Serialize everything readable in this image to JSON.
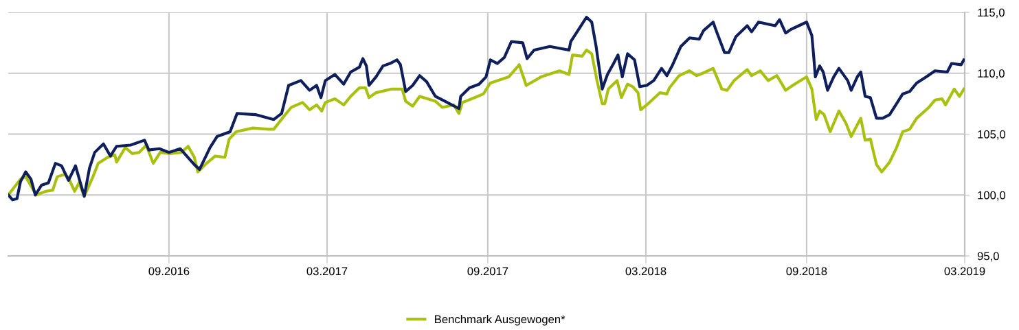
{
  "chart_data": {
    "type": "line",
    "xlim": [
      "2016-03-01",
      "2019-03-01"
    ],
    "xticks": [
      {
        "value": "2016-09-01",
        "label": "09.2016"
      },
      {
        "value": "2017-03-01",
        "label": "03.2017"
      },
      {
        "value": "2017-09-01",
        "label": "09.2017"
      },
      {
        "value": "2018-03-01",
        "label": "03.2018"
      },
      {
        "value": "2018-09-01",
        "label": "09.2018"
      },
      {
        "value": "2019-03-01",
        "label": "03.2019"
      }
    ],
    "ylim": [
      95,
      115
    ],
    "yticks": [
      {
        "value": 95,
        "label": "95,0"
      },
      {
        "value": 100,
        "label": "100,0"
      },
      {
        "value": 105,
        "label": "105,0"
      },
      {
        "value": 110,
        "label": "110,0"
      },
      {
        "value": 115,
        "label": "115,0"
      }
    ],
    "grid": true,
    "legend": "bottom",
    "marker": "none",
    "line_style": "solid",
    "series": [
      {
        "color": "#0f1f5c",
        "x": [
          "2016-03-01",
          "2016-03-06",
          "2016-03-11",
          "2016-03-15",
          "2016-03-21",
          "2016-03-27",
          "2016-04-01",
          "2016-04-08",
          "2016-04-16",
          "2016-04-24",
          "2016-05-01",
          "2016-05-09",
          "2016-05-17",
          "2016-05-27",
          "2016-06-02",
          "2016-06-08",
          "2016-06-18",
          "2016-06-26",
          "2016-07-03",
          "2016-07-19",
          "2016-08-04",
          "2016-08-09",
          "2016-08-21",
          "2016-09-01",
          "2016-09-14",
          "2016-09-30",
          "2016-10-06",
          "2016-10-18",
          "2016-10-26",
          "2016-11-10",
          "2016-11-18",
          "2016-12-09",
          "2016-12-30",
          "2017-01-08",
          "2017-01-16",
          "2017-01-30",
          "2017-02-09",
          "2017-02-17",
          "2017-02-22",
          "2017-02-27",
          "2017-03-10",
          "2017-03-20",
          "2017-03-28",
          "2017-04-07",
          "2017-04-11",
          "2017-04-15",
          "2017-04-18",
          "2017-04-26",
          "2017-05-04",
          "2017-05-12",
          "2017-05-20",
          "2017-05-24",
          "2017-05-30",
          "2017-06-07",
          "2017-06-15",
          "2017-06-23",
          "2017-07-03",
          "2017-07-14",
          "2017-07-30",
          "2017-08-01",
          "2017-08-11",
          "2017-08-22",
          "2017-08-30",
          "2017-09-04",
          "2017-09-12",
          "2017-09-20",
          "2017-09-28",
          "2017-10-11",
          "2017-10-16",
          "2017-10-24",
          "2017-11-11",
          "2017-12-03",
          "2017-12-05",
          "2017-12-23",
          "2017-12-29",
          "2018-01-03",
          "2018-01-10",
          "2018-01-16",
          "2018-01-23",
          "2018-01-28",
          "2018-02-02",
          "2018-02-08",
          "2018-02-16",
          "2018-02-22",
          "2018-03-02",
          "2018-03-10",
          "2018-03-19",
          "2018-03-25",
          "2018-03-31",
          "2018-04-10",
          "2018-04-20",
          "2018-05-01",
          "2018-05-06",
          "2018-05-17",
          "2018-05-21",
          "2018-05-30",
          "2018-06-04",
          "2018-06-12",
          "2018-06-25",
          "2018-06-30",
          "2018-07-08",
          "2018-07-27",
          "2018-08-01",
          "2018-08-08",
          "2018-08-14",
          "2018-08-26",
          "2018-09-01",
          "2018-09-07",
          "2018-09-09",
          "2018-09-11",
          "2018-09-16",
          "2018-09-20",
          "2018-09-25",
          "2018-10-02",
          "2018-10-08",
          "2018-10-18",
          "2018-10-22",
          "2018-10-29",
          "2018-11-02",
          "2018-11-07",
          "2018-11-13",
          "2018-11-20",
          "2018-11-27",
          "2018-12-05",
          "2018-12-13",
          "2018-12-20",
          "2018-12-28",
          "2019-01-05",
          "2019-01-16",
          "2019-01-26",
          "2019-02-09",
          "2019-02-14",
          "2019-02-25",
          "2019-02-28"
        ],
        "values": [
          100.0,
          99.6,
          99.7,
          101.1,
          101.9,
          101.3,
          100.0,
          100.8,
          101.0,
          102.6,
          102.4,
          101.2,
          102.4,
          99.9,
          102.2,
          103.5,
          104.2,
          103.2,
          104.0,
          104.1,
          104.5,
          103.7,
          103.8,
          103.5,
          103.8,
          102.5,
          102.1,
          103.9,
          104.8,
          105.2,
          106.7,
          106.6,
          106.2,
          106.7,
          109.0,
          109.4,
          108.6,
          109.0,
          108.0,
          109.4,
          109.9,
          109.1,
          110.1,
          110.5,
          111.2,
          110.6,
          109.0,
          109.7,
          110.6,
          110.8,
          111.1,
          110.7,
          108.5,
          109.0,
          109.8,
          109.3,
          108.1,
          107.7,
          107.1,
          108.1,
          108.8,
          109.1,
          109.7,
          111.1,
          110.8,
          111.3,
          112.6,
          112.5,
          111.2,
          111.9,
          112.2,
          111.9,
          112.6,
          114.6,
          114.2,
          112.2,
          108.7,
          109.9,
          110.8,
          111.5,
          109.7,
          111.6,
          111.1,
          108.9,
          109.0,
          109.4,
          110.4,
          109.8,
          110.6,
          112.2,
          112.9,
          112.8,
          113.5,
          114.2,
          113.4,
          111.7,
          111.7,
          113.0,
          113.9,
          113.4,
          114.2,
          113.9,
          114.4,
          113.3,
          113.6,
          114.0,
          114.2,
          113.1,
          111.5,
          109.7,
          110.6,
          110.1,
          108.6,
          109.7,
          110.4,
          109.4,
          108.6,
          109.7,
          110.1,
          108.1,
          108.0,
          106.3,
          106.3,
          106.6,
          107.5,
          108.3,
          108.5,
          109.2,
          109.7,
          110.2,
          110.1,
          110.8,
          110.7,
          111.1
        ]
      },
      {
        "name": "Benchmark Ausgewogen*",
        "color": "#a9c00f",
        "x": [
          "2016-03-02",
          "2016-03-15",
          "2016-03-21",
          "2016-04-02",
          "2016-04-13",
          "2016-04-21",
          "2016-04-26",
          "2016-05-05",
          "2016-05-09",
          "2016-05-16",
          "2016-05-21",
          "2016-05-27",
          "2016-06-06",
          "2016-06-12",
          "2016-06-23",
          "2016-07-01",
          "2016-07-03",
          "2016-07-13",
          "2016-07-21",
          "2016-07-29",
          "2016-08-06",
          "2016-08-14",
          "2016-08-22",
          "2016-09-02",
          "2016-09-15",
          "2016-09-23",
          "2016-09-30",
          "2016-10-04",
          "2016-10-14",
          "2016-10-24",
          "2016-11-04",
          "2016-11-09",
          "2016-11-17",
          "2016-12-06",
          "2016-12-24",
          "2016-12-30",
          "2017-01-11",
          "2017-01-19",
          "2017-02-01",
          "2017-02-09",
          "2017-02-17",
          "2017-02-23",
          "2017-02-27",
          "2017-03-10",
          "2017-03-20",
          "2017-03-28",
          "2017-04-07",
          "2017-04-14",
          "2017-04-18",
          "2017-04-26",
          "2017-05-14",
          "2017-05-26",
          "2017-05-30",
          "2017-06-07",
          "2017-06-15",
          "2017-07-03",
          "2017-07-11",
          "2017-07-24",
          "2017-07-30",
          "2017-08-03",
          "2017-08-17",
          "2017-08-27",
          "2017-09-04",
          "2017-09-25",
          "2017-10-07",
          "2017-10-15",
          "2017-11-01",
          "2017-11-22",
          "2017-12-03",
          "2017-12-07",
          "2017-12-18",
          "2017-12-23",
          "2017-12-29",
          "2018-01-04",
          "2018-01-10",
          "2018-01-13",
          "2018-01-17",
          "2018-01-27",
          "2018-02-01",
          "2018-02-08",
          "2018-02-14",
          "2018-02-20",
          "2018-02-23",
          "2018-03-02",
          "2018-03-17",
          "2018-03-25",
          "2018-03-28",
          "2018-04-08",
          "2018-04-20",
          "2018-04-28",
          "2018-05-05",
          "2018-05-17",
          "2018-05-27",
          "2018-06-02",
          "2018-06-10",
          "2018-06-25",
          "2018-06-30",
          "2018-07-10",
          "2018-07-19",
          "2018-07-29",
          "2018-08-08",
          "2018-08-16",
          "2018-09-01",
          "2018-09-07",
          "2018-09-12",
          "2018-09-16",
          "2018-09-21",
          "2018-09-28",
          "2018-10-08",
          "2018-10-16",
          "2018-10-22",
          "2018-10-30",
          "2018-11-02",
          "2018-11-07",
          "2018-11-13",
          "2018-11-20",
          "2018-11-26",
          "2018-12-05",
          "2018-12-13",
          "2018-12-20",
          "2018-12-28",
          "2019-01-05",
          "2019-01-19",
          "2019-01-26",
          "2019-02-03",
          "2019-02-07",
          "2019-02-17",
          "2019-02-23",
          "2019-02-28"
        ],
        "values": [
          100.1,
          101.3,
          101.5,
          100.0,
          100.3,
          100.4,
          101.5,
          101.7,
          101.4,
          100.3,
          101.0,
          99.9,
          101.5,
          102.6,
          103.1,
          103.3,
          102.7,
          103.9,
          103.4,
          103.5,
          104.1,
          102.6,
          103.5,
          103.4,
          103.5,
          104.0,
          103.1,
          101.9,
          102.6,
          103.2,
          103.1,
          104.6,
          105.2,
          105.5,
          105.4,
          105.4,
          106.5,
          107.2,
          107.6,
          107.0,
          107.4,
          106.9,
          107.6,
          107.9,
          107.4,
          108.1,
          108.8,
          108.8,
          108.0,
          108.4,
          108.7,
          108.7,
          107.7,
          107.3,
          108.1,
          107.7,
          107.2,
          107.4,
          106.7,
          107.6,
          108.0,
          108.3,
          109.2,
          109.7,
          110.7,
          109.0,
          109.7,
          110.2,
          109.9,
          111.5,
          111.4,
          111.9,
          111.6,
          109.4,
          107.5,
          107.5,
          108.7,
          109.4,
          108.0,
          109.1,
          108.9,
          108.4,
          107.0,
          107.4,
          108.4,
          108.3,
          108.8,
          109.8,
          110.2,
          109.8,
          110.0,
          110.4,
          108.7,
          108.6,
          109.4,
          110.3,
          109.8,
          110.2,
          109.4,
          109.8,
          108.6,
          109.0,
          109.7,
          108.7,
          106.2,
          106.9,
          106.6,
          105.2,
          106.9,
          105.9,
          104.8,
          105.9,
          106.3,
          104.5,
          104.6,
          102.5,
          101.9,
          102.7,
          103.9,
          105.2,
          105.4,
          106.3,
          107.2,
          107.8,
          107.9,
          107.4,
          108.7,
          108.1,
          108.7
        ]
      }
    ]
  }
}
